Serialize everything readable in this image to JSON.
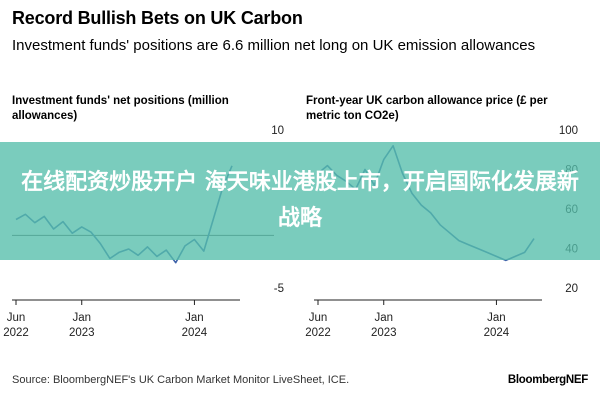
{
  "header": {
    "title": "Record Bullish Bets on UK Carbon",
    "subtitle": "Investment funds' positions are 6.6 million net long on UK emission allowances"
  },
  "footer": {
    "source": "Source: BloombergNEF's UK Carbon Market Monitor LiveSheet, ICE.",
    "brand": "BloombergNEF"
  },
  "banner": {
    "text": "在线配资炒股开户 海天味业港股上市，开启国际化发展新战略"
  },
  "colors": {
    "line": "#3f63a9",
    "zero_line": "#555555",
    "banner": "#54beaa"
  },
  "chart_data": [
    {
      "type": "line",
      "title": "Investment funds' net positions (million allowances)",
      "ylim": [
        -5,
        10
      ],
      "yticks": [
        10,
        -5
      ],
      "xticks": [
        {
          "label": [
            "Jun",
            "2022"
          ],
          "x": "2022-06"
        },
        {
          "label": [
            "Jan",
            "2023"
          ],
          "x": "2023-01"
        },
        {
          "label": [
            "Jan",
            "2024"
          ],
          "x": "2024-01"
        }
      ],
      "zero_line": true,
      "x": [
        "2022-06",
        "2022-07",
        "2022-08",
        "2022-09",
        "2022-10",
        "2022-11",
        "2022-12",
        "2023-01",
        "2023-02",
        "2023-03",
        "2023-04",
        "2023-05",
        "2023-06",
        "2023-07",
        "2023-08",
        "2023-09",
        "2023-10",
        "2023-11",
        "2023-12",
        "2024-01",
        "2024-02",
        "2024-03",
        "2024-04",
        "2024-05"
      ],
      "values": [
        1.5,
        2.0,
        1.2,
        1.8,
        0.6,
        1.3,
        0.2,
        0.8,
        0.3,
        -0.8,
        -2.2,
        -1.6,
        -1.3,
        -1.9,
        -1.1,
        -2.0,
        -1.4,
        -2.6,
        -1.0,
        -0.4,
        -1.5,
        1.5,
        4.5,
        6.6
      ]
    },
    {
      "type": "line",
      "title": "Front-year UK carbon allowance price (£ per metric ton CO2e)",
      "ylim": [
        20,
        100
      ],
      "yticks": [
        100,
        80,
        60,
        40,
        20
      ],
      "xticks": [
        {
          "label": [
            "Jun",
            "2022"
          ],
          "x": "2022-06"
        },
        {
          "label": [
            "Jan",
            "2023"
          ],
          "x": "2023-01"
        },
        {
          "label": [
            "Jan",
            "2024"
          ],
          "x": "2024-01"
        }
      ],
      "x": [
        "2022-06",
        "2022-07",
        "2022-08",
        "2022-09",
        "2022-10",
        "2022-11",
        "2022-12",
        "2023-01",
        "2023-02",
        "2023-03",
        "2023-04",
        "2023-05",
        "2023-06",
        "2023-07",
        "2023-08",
        "2023-09",
        "2023-10",
        "2023-11",
        "2023-12",
        "2024-01",
        "2024-02",
        "2024-03",
        "2024-04",
        "2024-05"
      ],
      "values": [
        78,
        82,
        77,
        74,
        70,
        80,
        72,
        85,
        92,
        78,
        68,
        62,
        58,
        52,
        48,
        44,
        42,
        40,
        38,
        36,
        34,
        36,
        38,
        45
      ]
    }
  ]
}
